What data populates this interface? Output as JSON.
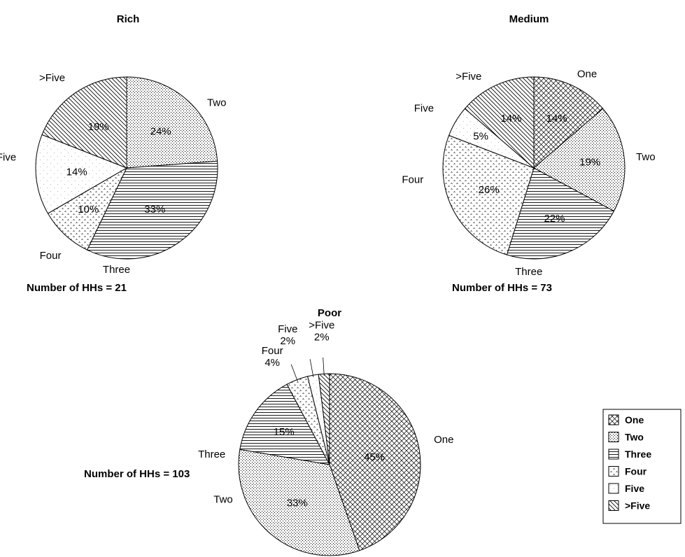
{
  "chart_data": [
    {
      "type": "pie",
      "title": "Rich",
      "footnote": "Number of HHs = 21",
      "slices": [
        {
          "name": "Two",
          "pct": "24%",
          "value": 23.81,
          "pattern": "two"
        },
        {
          "name": "Three",
          "pct": "33%",
          "value": 33.33,
          "pattern": "three"
        },
        {
          "name": "Four",
          "pct": "10%",
          "value": 9.52,
          "pattern": "four"
        },
        {
          "name": "Five",
          "pct": "14%",
          "value": 14.29,
          "pattern": "five"
        },
        {
          "name": ">Five",
          "pct": "19%",
          "value": 19.05,
          "pattern": "gtfive"
        }
      ]
    },
    {
      "type": "pie",
      "title": "Medium",
      "footnote": "Number of HHs = 73",
      "slices": [
        {
          "name": "One",
          "pct": "14%",
          "value": 13.7,
          "pattern": "one"
        },
        {
          "name": "Two",
          "pct": "19%",
          "value": 19.18,
          "pattern": "two"
        },
        {
          "name": "Three",
          "pct": "22%",
          "value": 21.92,
          "pattern": "three"
        },
        {
          "name": "Four",
          "pct": "26%",
          "value": 26.03,
          "pattern": "four"
        },
        {
          "name": "Five",
          "pct": "5%",
          "value": 5.48,
          "pattern": "five"
        },
        {
          "name": ">Five",
          "pct": "14%",
          "value": 13.7,
          "pattern": "gtfive"
        }
      ]
    },
    {
      "type": "pie",
      "title": "Poor",
      "footnote": "Number of HHs = 103",
      "slices": [
        {
          "name": "One",
          "pct": "45%",
          "value": 44.66,
          "pattern": "one"
        },
        {
          "name": "Two",
          "pct": "33%",
          "value": 33.01,
          "pattern": "two"
        },
        {
          "name": "Three",
          "pct": "15%",
          "value": 14.56,
          "pattern": "three"
        },
        {
          "name": "Four",
          "pct": "4%",
          "value": 3.88,
          "pattern": "four"
        },
        {
          "name": "Five",
          "pct": "2%",
          "value": 1.94,
          "pattern": "five"
        },
        {
          "name": ">Five",
          "pct": "2%",
          "value": 1.94,
          "pattern": "gtfive"
        }
      ]
    }
  ],
  "legend": [
    {
      "label": "One",
      "pattern": "one"
    },
    {
      "label": "Two",
      "pattern": "two"
    },
    {
      "label": "Three",
      "pattern": "three"
    },
    {
      "label": "Four",
      "pattern": "four"
    },
    {
      "label": "Five",
      "pattern": "five"
    },
    {
      "label": ">Five",
      "pattern": "gtfive"
    }
  ],
  "colors": {
    "line": "#000000",
    "background": "#ffffff"
  }
}
